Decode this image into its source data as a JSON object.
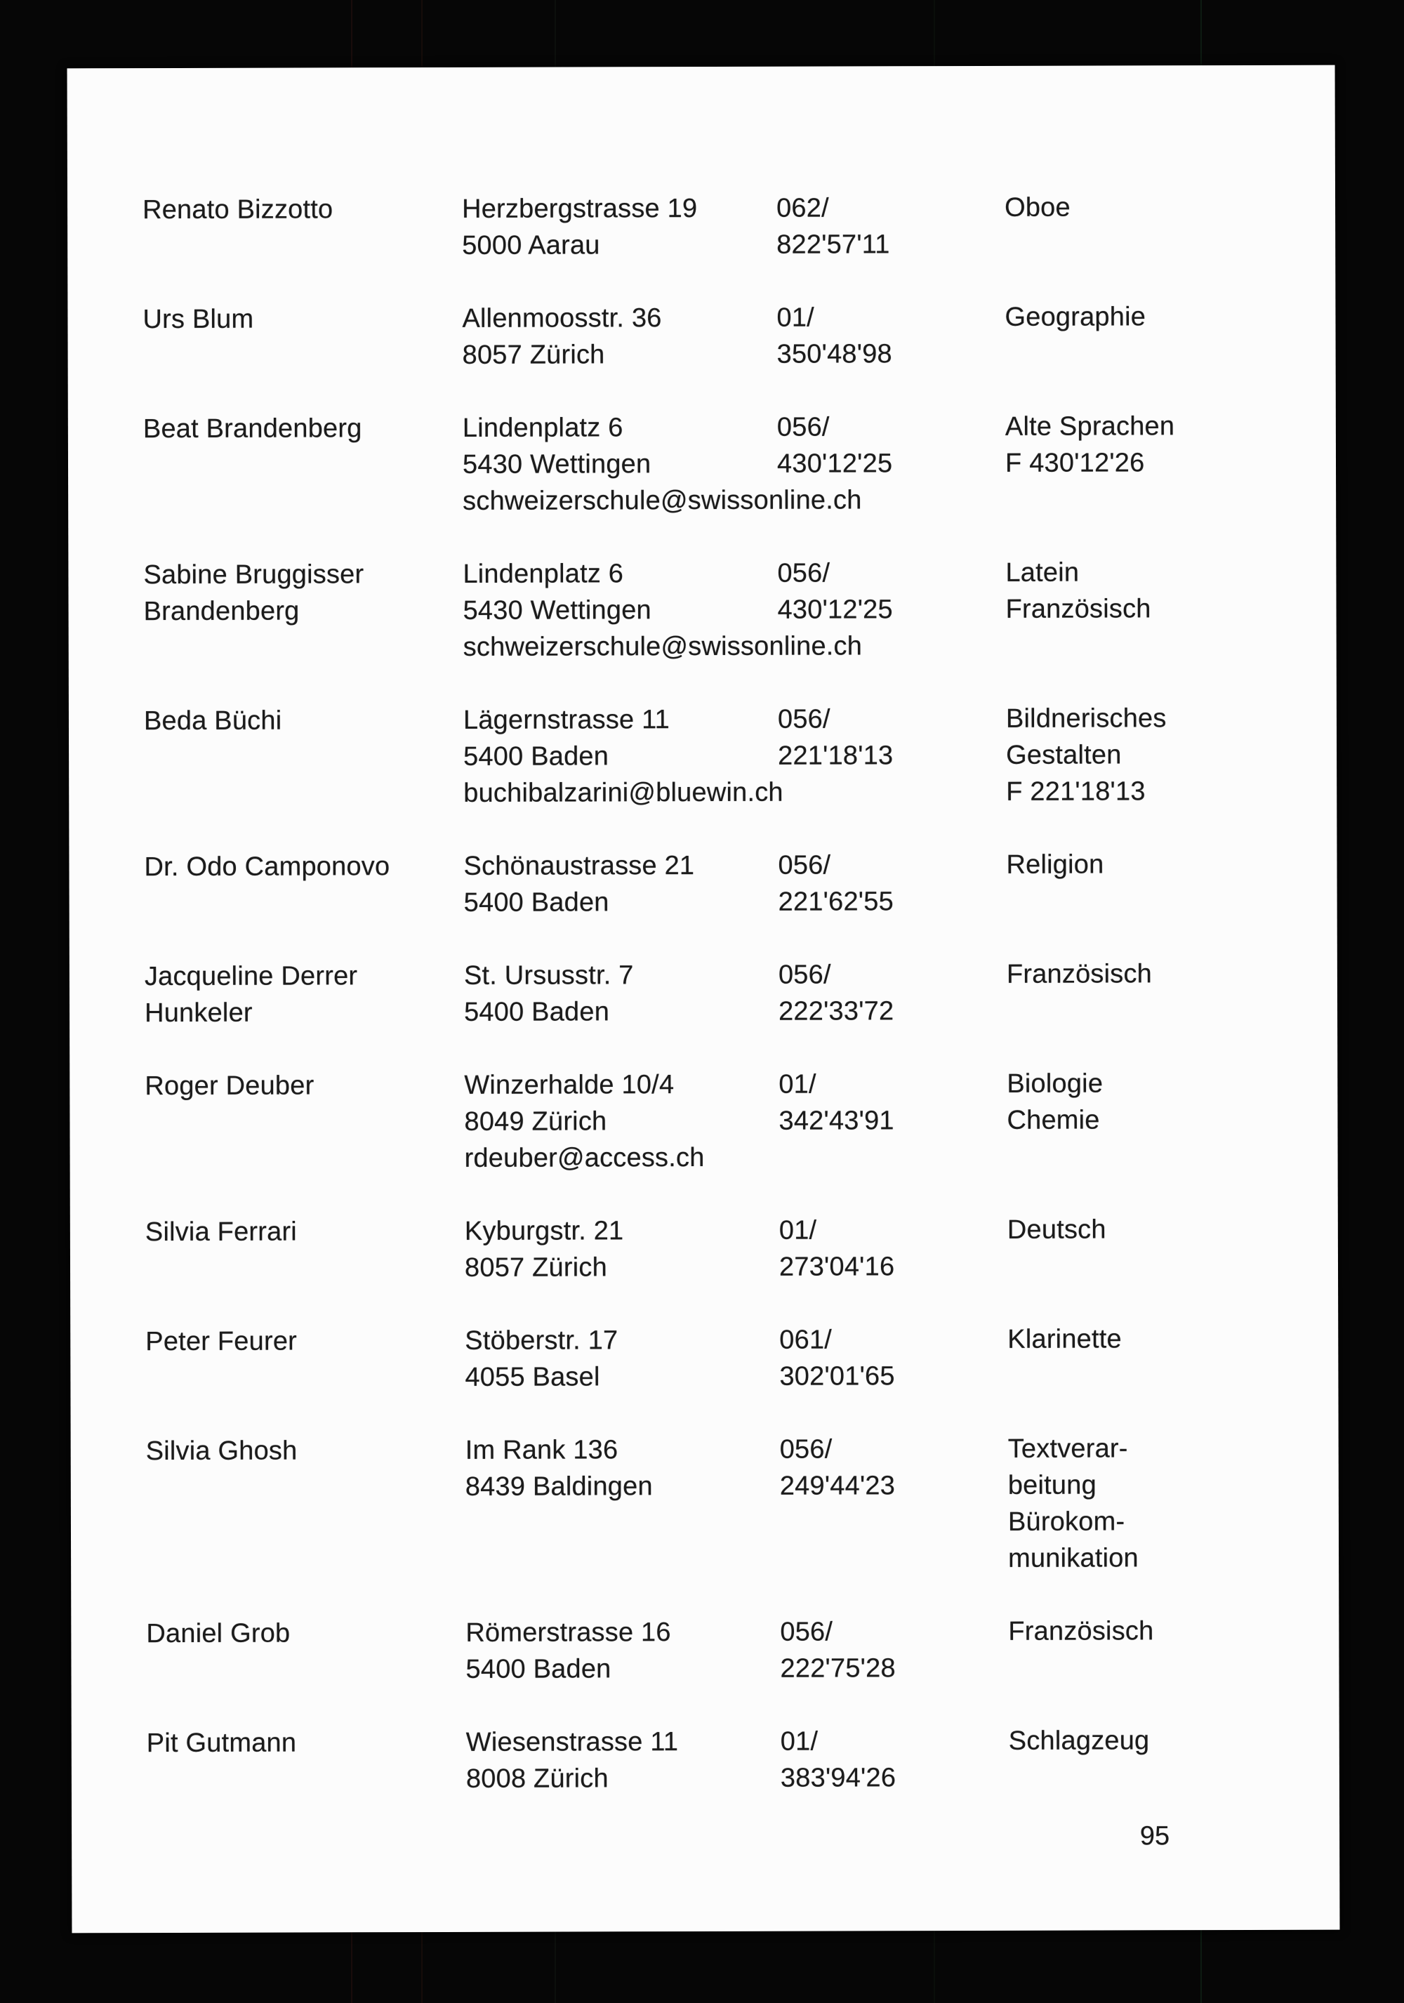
{
  "page": {
    "page_number": "95"
  },
  "entries": [
    {
      "name": [
        "Renato Bizzotto"
      ],
      "address": [
        "Herzbergstrasse 19",
        "5000 Aarau"
      ],
      "phone": [
        "062/",
        "822'57'11"
      ],
      "subject": [
        "Oboe"
      ]
    },
    {
      "name": [
        "Urs Blum"
      ],
      "address": [
        "Allenmoosstr. 36",
        "8057 Zürich"
      ],
      "phone": [
        "01/",
        "350'48'98"
      ],
      "subject": [
        "Geographie"
      ]
    },
    {
      "name": [
        "Beat Brandenberg"
      ],
      "address": [
        "Lindenplatz 6",
        "5430 Wettingen",
        "schweizerschule@swissonline.ch"
      ],
      "phone": [
        "056/",
        "430'12'25"
      ],
      "subject": [
        "Alte Sprachen",
        "F 430'12'26"
      ]
    },
    {
      "name": [
        "Sabine Bruggisser",
        "Brandenberg"
      ],
      "address": [
        "Lindenplatz 6",
        "5430 Wettingen",
        "schweizerschule@swissonline.ch"
      ],
      "phone": [
        "056/",
        "430'12'25"
      ],
      "subject": [
        "Latein",
        "Französisch"
      ]
    },
    {
      "name": [
        "Beda Büchi"
      ],
      "address": [
        "Lägernstrasse 11",
        "5400 Baden",
        "buchibalzarini@bluewin.ch"
      ],
      "phone": [
        "056/",
        "221'18'13"
      ],
      "subject": [
        "Bildnerisches",
        "Gestalten",
        "F 221'18'13"
      ]
    },
    {
      "name": [
        "Dr. Odo Camponovo"
      ],
      "address": [
        "Schönaustrasse 21",
        "5400 Baden"
      ],
      "phone": [
        "056/",
        "221'62'55"
      ],
      "subject": [
        "Religion"
      ]
    },
    {
      "name": [
        "Jacqueline Derrer",
        "Hunkeler"
      ],
      "address": [
        "St. Ursusstr. 7",
        "5400 Baden"
      ],
      "phone": [
        "056/",
        "222'33'72"
      ],
      "subject": [
        "Französisch"
      ]
    },
    {
      "name": [
        "Roger Deuber"
      ],
      "address": [
        "Winzerhalde 10/4",
        "8049 Zürich",
        "rdeuber@access.ch"
      ],
      "phone": [
        "01/",
        "342'43'91"
      ],
      "subject": [
        "Biologie",
        "Chemie"
      ]
    },
    {
      "name": [
        "Silvia Ferrari"
      ],
      "address": [
        "Kyburgstr. 21",
        "8057 Zürich"
      ],
      "phone": [
        "01/",
        "273'04'16"
      ],
      "subject": [
        "Deutsch"
      ]
    },
    {
      "name": [
        "Peter Feurer"
      ],
      "address": [
        "Stöberstr. 17",
        "4055 Basel"
      ],
      "phone": [
        "061/",
        "302'01'65"
      ],
      "subject": [
        "Klarinette"
      ]
    },
    {
      "name": [
        "Silvia Ghosh"
      ],
      "address": [
        "Im Rank 136",
        "8439 Baldingen"
      ],
      "phone": [
        "056/",
        "249'44'23"
      ],
      "subject": [
        "Textverar-",
        "beitung",
        "Bürokom-",
        "munikation"
      ]
    },
    {
      "name": [
        "Daniel Grob"
      ],
      "address": [
        "Römerstrasse 16",
        "5400 Baden"
      ],
      "phone": [
        "056/",
        "222'75'28"
      ],
      "subject": [
        "Französisch"
      ]
    },
    {
      "name": [
        "Pit Gutmann"
      ],
      "address": [
        "Wiesenstrasse 11",
        "8008 Zürich"
      ],
      "phone": [
        "01/",
        "383'94'26"
      ],
      "subject": [
        "Schlagzeug"
      ]
    }
  ]
}
